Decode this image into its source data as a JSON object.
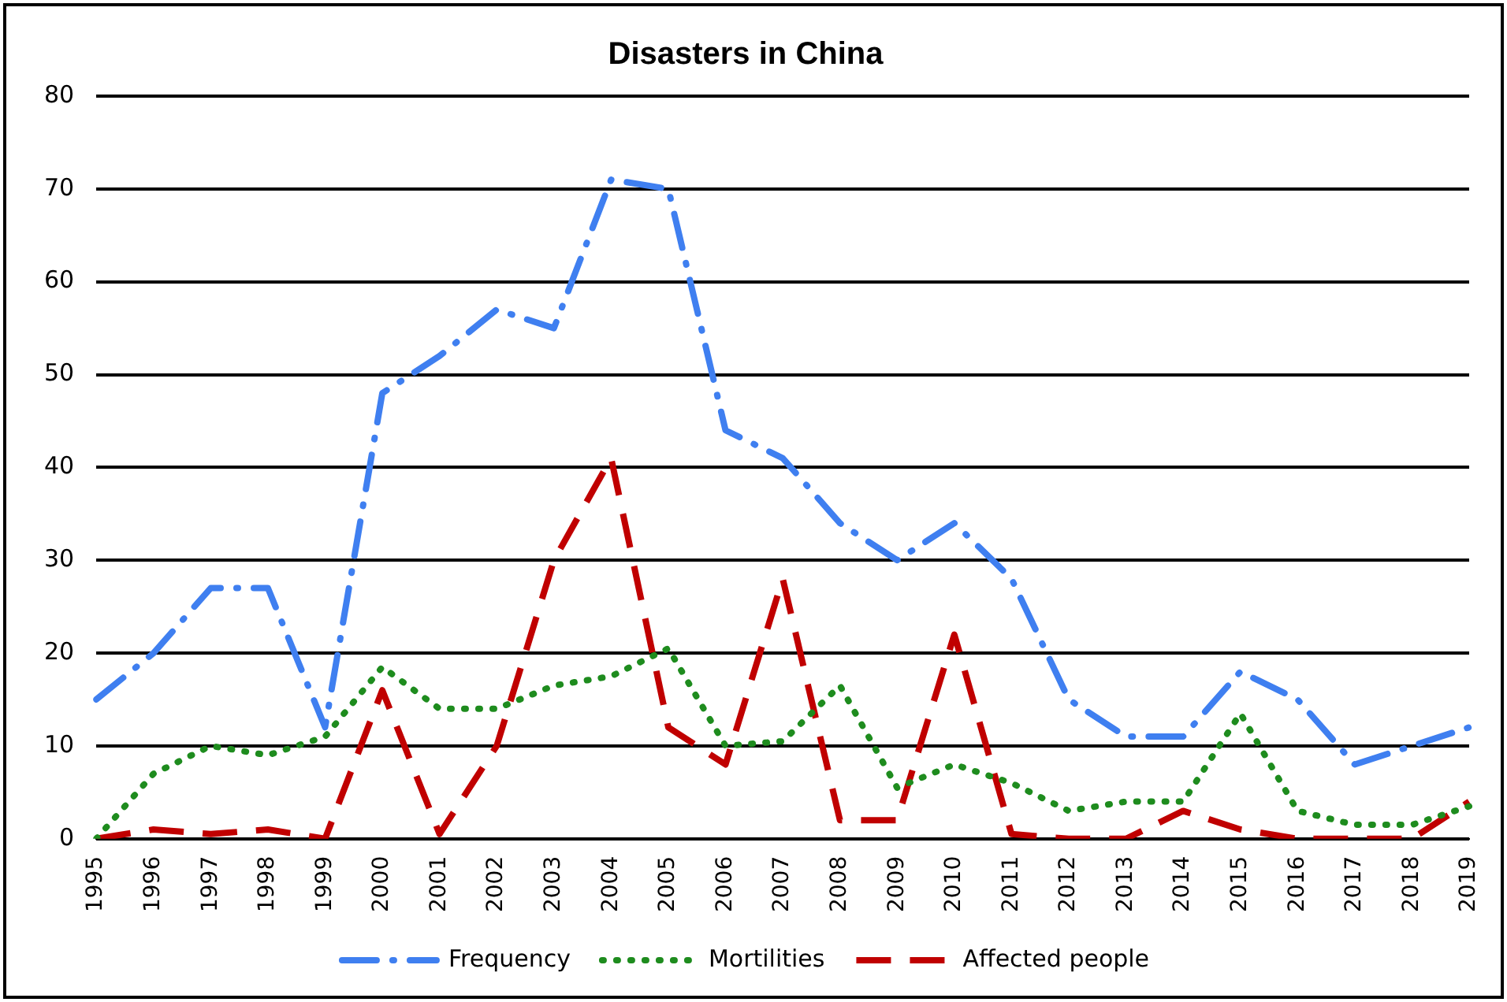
{
  "chart_data": {
    "type": "line",
    "title": "Disasters in China",
    "categories": [
      "1995",
      "1996",
      "1997",
      "1998",
      "1999",
      "2000",
      "2001",
      "2002",
      "2003",
      "2004",
      "2005",
      "2006",
      "2007",
      "2008",
      "2009",
      "2010",
      "2011",
      "2012",
      "2013",
      "2014",
      "2015",
      "2016",
      "2017",
      "2018",
      "2019"
    ],
    "series": [
      {
        "name": "Frequency",
        "color": "#3f7ff0",
        "line_style": "dashdot",
        "values": [
          15,
          20,
          27,
          27,
          12,
          48,
          52,
          57,
          55,
          71,
          70,
          44,
          41,
          34,
          30,
          34,
          28,
          15,
          11,
          11,
          18,
          15,
          8,
          10,
          12
        ]
      },
      {
        "name": "Mortilities",
        "color": "#1e8c1e",
        "line_style": "dotted",
        "values": [
          0,
          7,
          10,
          9,
          11,
          18.5,
          14,
          14,
          16.5,
          17.5,
          20.5,
          10,
          10.5,
          16.5,
          5.5,
          8,
          6,
          3,
          4,
          4,
          13.5,
          3,
          1.5,
          1.5,
          3.5
        ]
      },
      {
        "name": "Affected people",
        "color": "#c00000",
        "line_style": "dashed",
        "values": [
          0,
          1,
          0.5,
          1,
          0,
          16,
          0.5,
          10,
          30,
          41,
          12,
          8,
          28,
          2,
          2,
          22,
          0.5,
          0,
          0,
          3,
          1,
          0,
          0,
          0,
          4
        ]
      }
    ],
    "ylim": [
      0,
      80
    ],
    "yticks": [
      0,
      10,
      20,
      30,
      40,
      50,
      60,
      70,
      80
    ],
    "grid": "y",
    "legend": "bottom",
    "marker": "none"
  }
}
